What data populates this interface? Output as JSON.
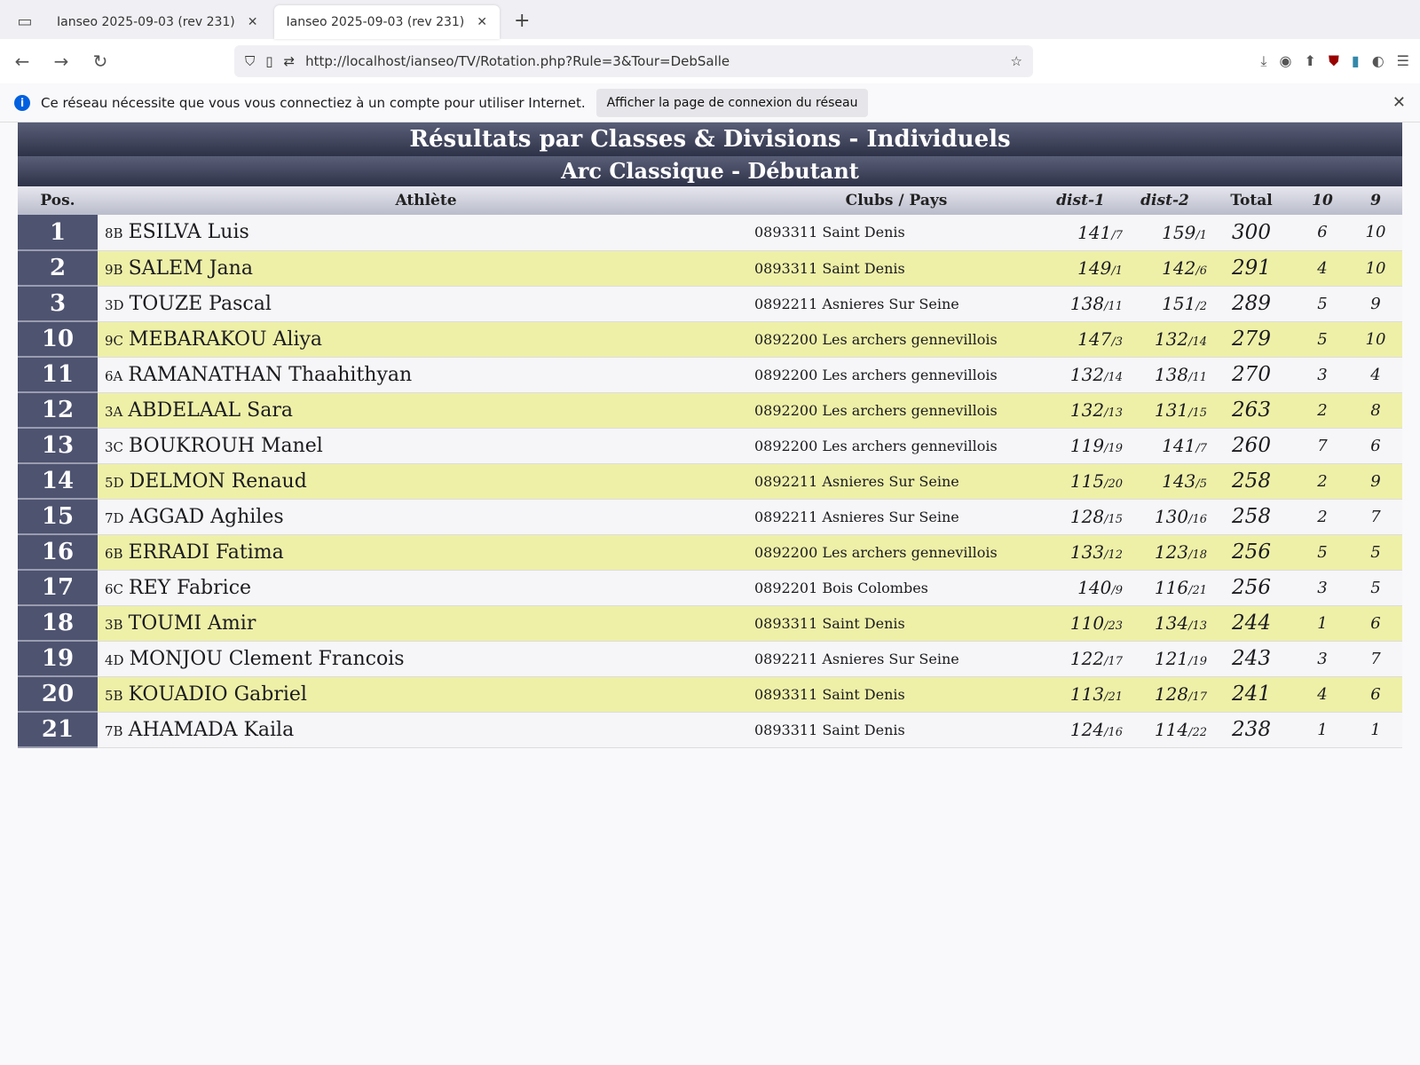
{
  "browser": {
    "tabs": [
      {
        "label": "Ianseo 2025-09-03 (rev 231)"
      },
      {
        "label": "Ianseo 2025-09-03 (rev 231)"
      }
    ],
    "url": "http://localhost/ianseo/TV/Rotation.php?Rule=3&Tour=DebSalle",
    "notification": "Ce réseau nécessite que vous vous connectiez à un compte pour utiliser Internet.",
    "notification_button": "Afficher la page de connexion du réseau"
  },
  "board": {
    "title": "Résultats par Classes & Divisions - Individuels",
    "subtitle": "Arc Classique - Débutant",
    "columns": {
      "pos": "Pos.",
      "athlete": "Athlète",
      "club": "Clubs / Pays",
      "d1": "dist-1",
      "d2": "dist-2",
      "total": "Total",
      "tens": "10",
      "nines": "9"
    },
    "rows": [
      {
        "pos": "1",
        "target": "8B",
        "name": "ESILVA Luis",
        "club": "0893311 Saint Denis",
        "d1": "141",
        "d1r": "/7",
        "d2": "159",
        "d2r": "/1",
        "total": "300",
        "tens": "6",
        "nines": "10"
      },
      {
        "pos": "2",
        "target": "9B",
        "name": "SALEM Jana",
        "club": "0893311 Saint Denis",
        "d1": "149",
        "d1r": "/1",
        "d2": "142",
        "d2r": "/6",
        "total": "291",
        "tens": "4",
        "nines": "10"
      },
      {
        "pos": "3",
        "target": "3D",
        "name": "TOUZE Pascal",
        "club": "0892211 Asnieres Sur Seine",
        "d1": "138",
        "d1r": "/11",
        "d2": "151",
        "d2r": "/2",
        "total": "289",
        "tens": "5",
        "nines": "9"
      },
      {
        "pos": "10",
        "target": "9C",
        "name": "MEBARAKOU Aliya",
        "club": "0892200 Les archers gennevillois",
        "d1": "147",
        "d1r": "/3",
        "d2": "132",
        "d2r": "/14",
        "total": "279",
        "tens": "5",
        "nines": "10"
      },
      {
        "pos": "11",
        "target": "6A",
        "name": "RAMANATHAN Thaahithyan",
        "club": "0892200 Les archers gennevillois",
        "d1": "132",
        "d1r": "/14",
        "d2": "138",
        "d2r": "/11",
        "total": "270",
        "tens": "3",
        "nines": "4"
      },
      {
        "pos": "12",
        "target": "3A",
        "name": "ABDELAAL Sara",
        "club": "0892200 Les archers gennevillois",
        "d1": "132",
        "d1r": "/13",
        "d2": "131",
        "d2r": "/15",
        "total": "263",
        "tens": "2",
        "nines": "8"
      },
      {
        "pos": "13",
        "target": "3C",
        "name": "BOUKROUH Manel",
        "club": "0892200 Les archers gennevillois",
        "d1": "119",
        "d1r": "/19",
        "d2": "141",
        "d2r": "/7",
        "total": "260",
        "tens": "7",
        "nines": "6"
      },
      {
        "pos": "14",
        "target": "5D",
        "name": "DELMON Renaud",
        "club": "0892211 Asnieres Sur Seine",
        "d1": "115",
        "d1r": "/20",
        "d2": "143",
        "d2r": "/5",
        "total": "258",
        "tens": "2",
        "nines": "9"
      },
      {
        "pos": "15",
        "target": "7D",
        "name": "AGGAD Aghiles",
        "club": "0892211 Asnieres Sur Seine",
        "d1": "128",
        "d1r": "/15",
        "d2": "130",
        "d2r": "/16",
        "total": "258",
        "tens": "2",
        "nines": "7"
      },
      {
        "pos": "16",
        "target": "6B",
        "name": "ERRADI Fatima",
        "club": "0892200 Les archers gennevillois",
        "d1": "133",
        "d1r": "/12",
        "d2": "123",
        "d2r": "/18",
        "total": "256",
        "tens": "5",
        "nines": "5"
      },
      {
        "pos": "17",
        "target": "6C",
        "name": "REY Fabrice",
        "club": "0892201 Bois Colombes",
        "d1": "140",
        "d1r": "/9",
        "d2": "116",
        "d2r": "/21",
        "total": "256",
        "tens": "3",
        "nines": "5"
      },
      {
        "pos": "18",
        "target": "3B",
        "name": "TOUMI Amir",
        "club": "0893311 Saint Denis",
        "d1": "110",
        "d1r": "/23",
        "d2": "134",
        "d2r": "/13",
        "total": "244",
        "tens": "1",
        "nines": "6"
      },
      {
        "pos": "19",
        "target": "4D",
        "name": "MONJOU Clement Francois",
        "club": "0892211 Asnieres Sur Seine",
        "d1": "122",
        "d1r": "/17",
        "d2": "121",
        "d2r": "/19",
        "total": "243",
        "tens": "3",
        "nines": "7"
      },
      {
        "pos": "20",
        "target": "5B",
        "name": "KOUADIO Gabriel",
        "club": "0893311 Saint Denis",
        "d1": "113",
        "d1r": "/21",
        "d2": "128",
        "d2r": "/17",
        "total": "241",
        "tens": "4",
        "nines": "6"
      },
      {
        "pos": "21",
        "target": "7B",
        "name": "AHAMADA Kaila",
        "club": "0893311 Saint Denis",
        "d1": "124",
        "d1r": "/16",
        "d2": "114",
        "d2r": "/22",
        "total": "238",
        "tens": "1",
        "nines": "1"
      }
    ]
  }
}
